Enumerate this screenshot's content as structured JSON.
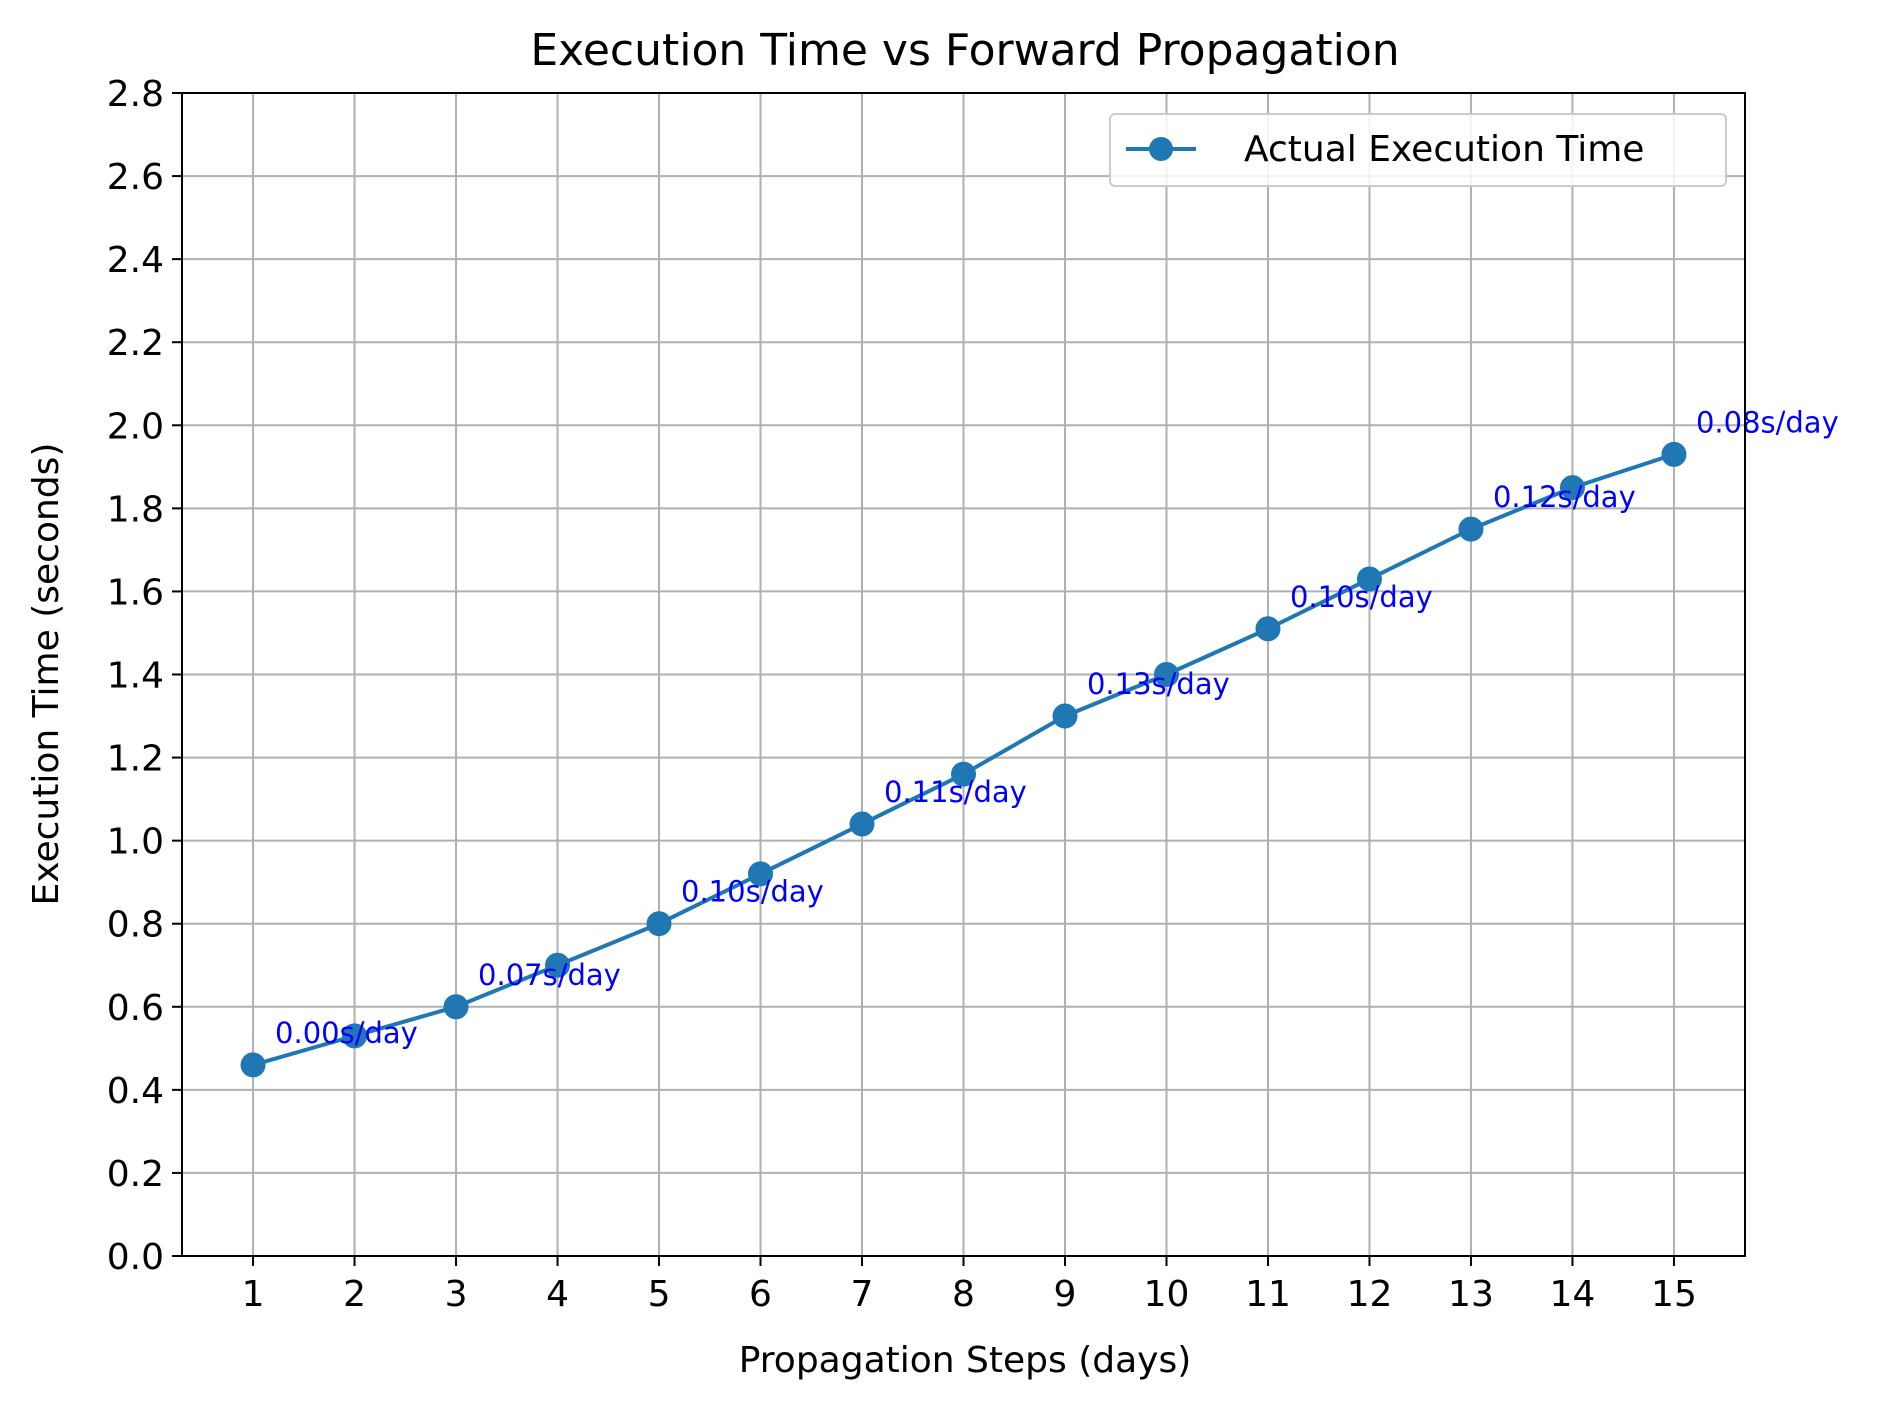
{
  "chart_data": {
    "type": "line",
    "title": "Execution Time vs Forward Propagation",
    "xlabel": "Propagation Steps (days)",
    "ylabel": "Execution Time (seconds)",
    "x": [
      1,
      2,
      3,
      4,
      5,
      6,
      7,
      8,
      9,
      10,
      11,
      12,
      13,
      14,
      15
    ],
    "xlim": [
      0.3,
      15.7
    ],
    "ylim": [
      0.0,
      2.8
    ],
    "yticks": [
      "0.0",
      "0.2",
      "0.4",
      "0.6",
      "0.8",
      "1.0",
      "1.2",
      "1.4",
      "1.6",
      "1.8",
      "2.0",
      "2.2",
      "2.4",
      "2.6",
      "2.8"
    ],
    "grid": true,
    "legend_position": "top-right",
    "series": [
      {
        "name": "Actual Execution Time",
        "color": "#1f77b4",
        "marker": "circle",
        "values": [
          0.46,
          0.53,
          0.6,
          0.7,
          0.8,
          0.92,
          1.04,
          1.16,
          1.3,
          1.4,
          1.51,
          1.63,
          1.75,
          1.85,
          1.93
        ]
      }
    ],
    "annotations": [
      {
        "x": 1,
        "y": 0.46,
        "text": "0.00s/day"
      },
      {
        "x": 3,
        "y": 0.6,
        "text": "0.07s/day"
      },
      {
        "x": 5,
        "y": 0.8,
        "text": "0.10s/day"
      },
      {
        "x": 7,
        "y": 1.04,
        "text": "0.11s/day"
      },
      {
        "x": 9,
        "y": 1.3,
        "text": "0.13s/day"
      },
      {
        "x": 11,
        "y": 1.51,
        "text": "0.10s/day"
      },
      {
        "x": 13,
        "y": 1.75,
        "text": "0.12s/day"
      },
      {
        "x": 15,
        "y": 1.93,
        "text": "0.08s/day"
      }
    ],
    "annotation_color": "#0000ff"
  }
}
